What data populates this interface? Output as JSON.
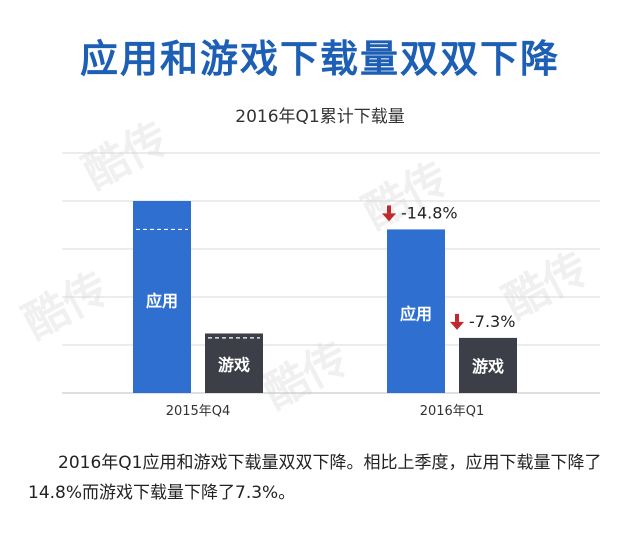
{
  "headline": "应用和游戏下载量双双下降",
  "caption": "2016年Q1应用和游戏下载量双双下降。相比上季度，应用下载量下降了14.8%而游戏下载量下降了7.3%。",
  "colors": {
    "app": "#2f6fd0",
    "game": "#3c3f48",
    "arrow": "#c0282d",
    "headline": "#1d5fb4",
    "grid": "#d8d8d8"
  },
  "chart_data": {
    "type": "bar",
    "title": "2016年Q1累计下载量",
    "categories": [
      "2015年Q4",
      "2016年Q1"
    ],
    "series": [
      {
        "name": "应用",
        "values": [
          100,
          85.2
        ]
      },
      {
        "name": "游戏",
        "values": [
          31,
          28.7
        ]
      }
    ],
    "changes": [
      {
        "series": "应用",
        "label": "-14.8%"
      },
      {
        "series": "游戏",
        "label": "-7.3%"
      }
    ],
    "ylim": [
      0,
      125
    ],
    "grid": true,
    "legend": "none",
    "xlabel": "",
    "ylabel": ""
  }
}
